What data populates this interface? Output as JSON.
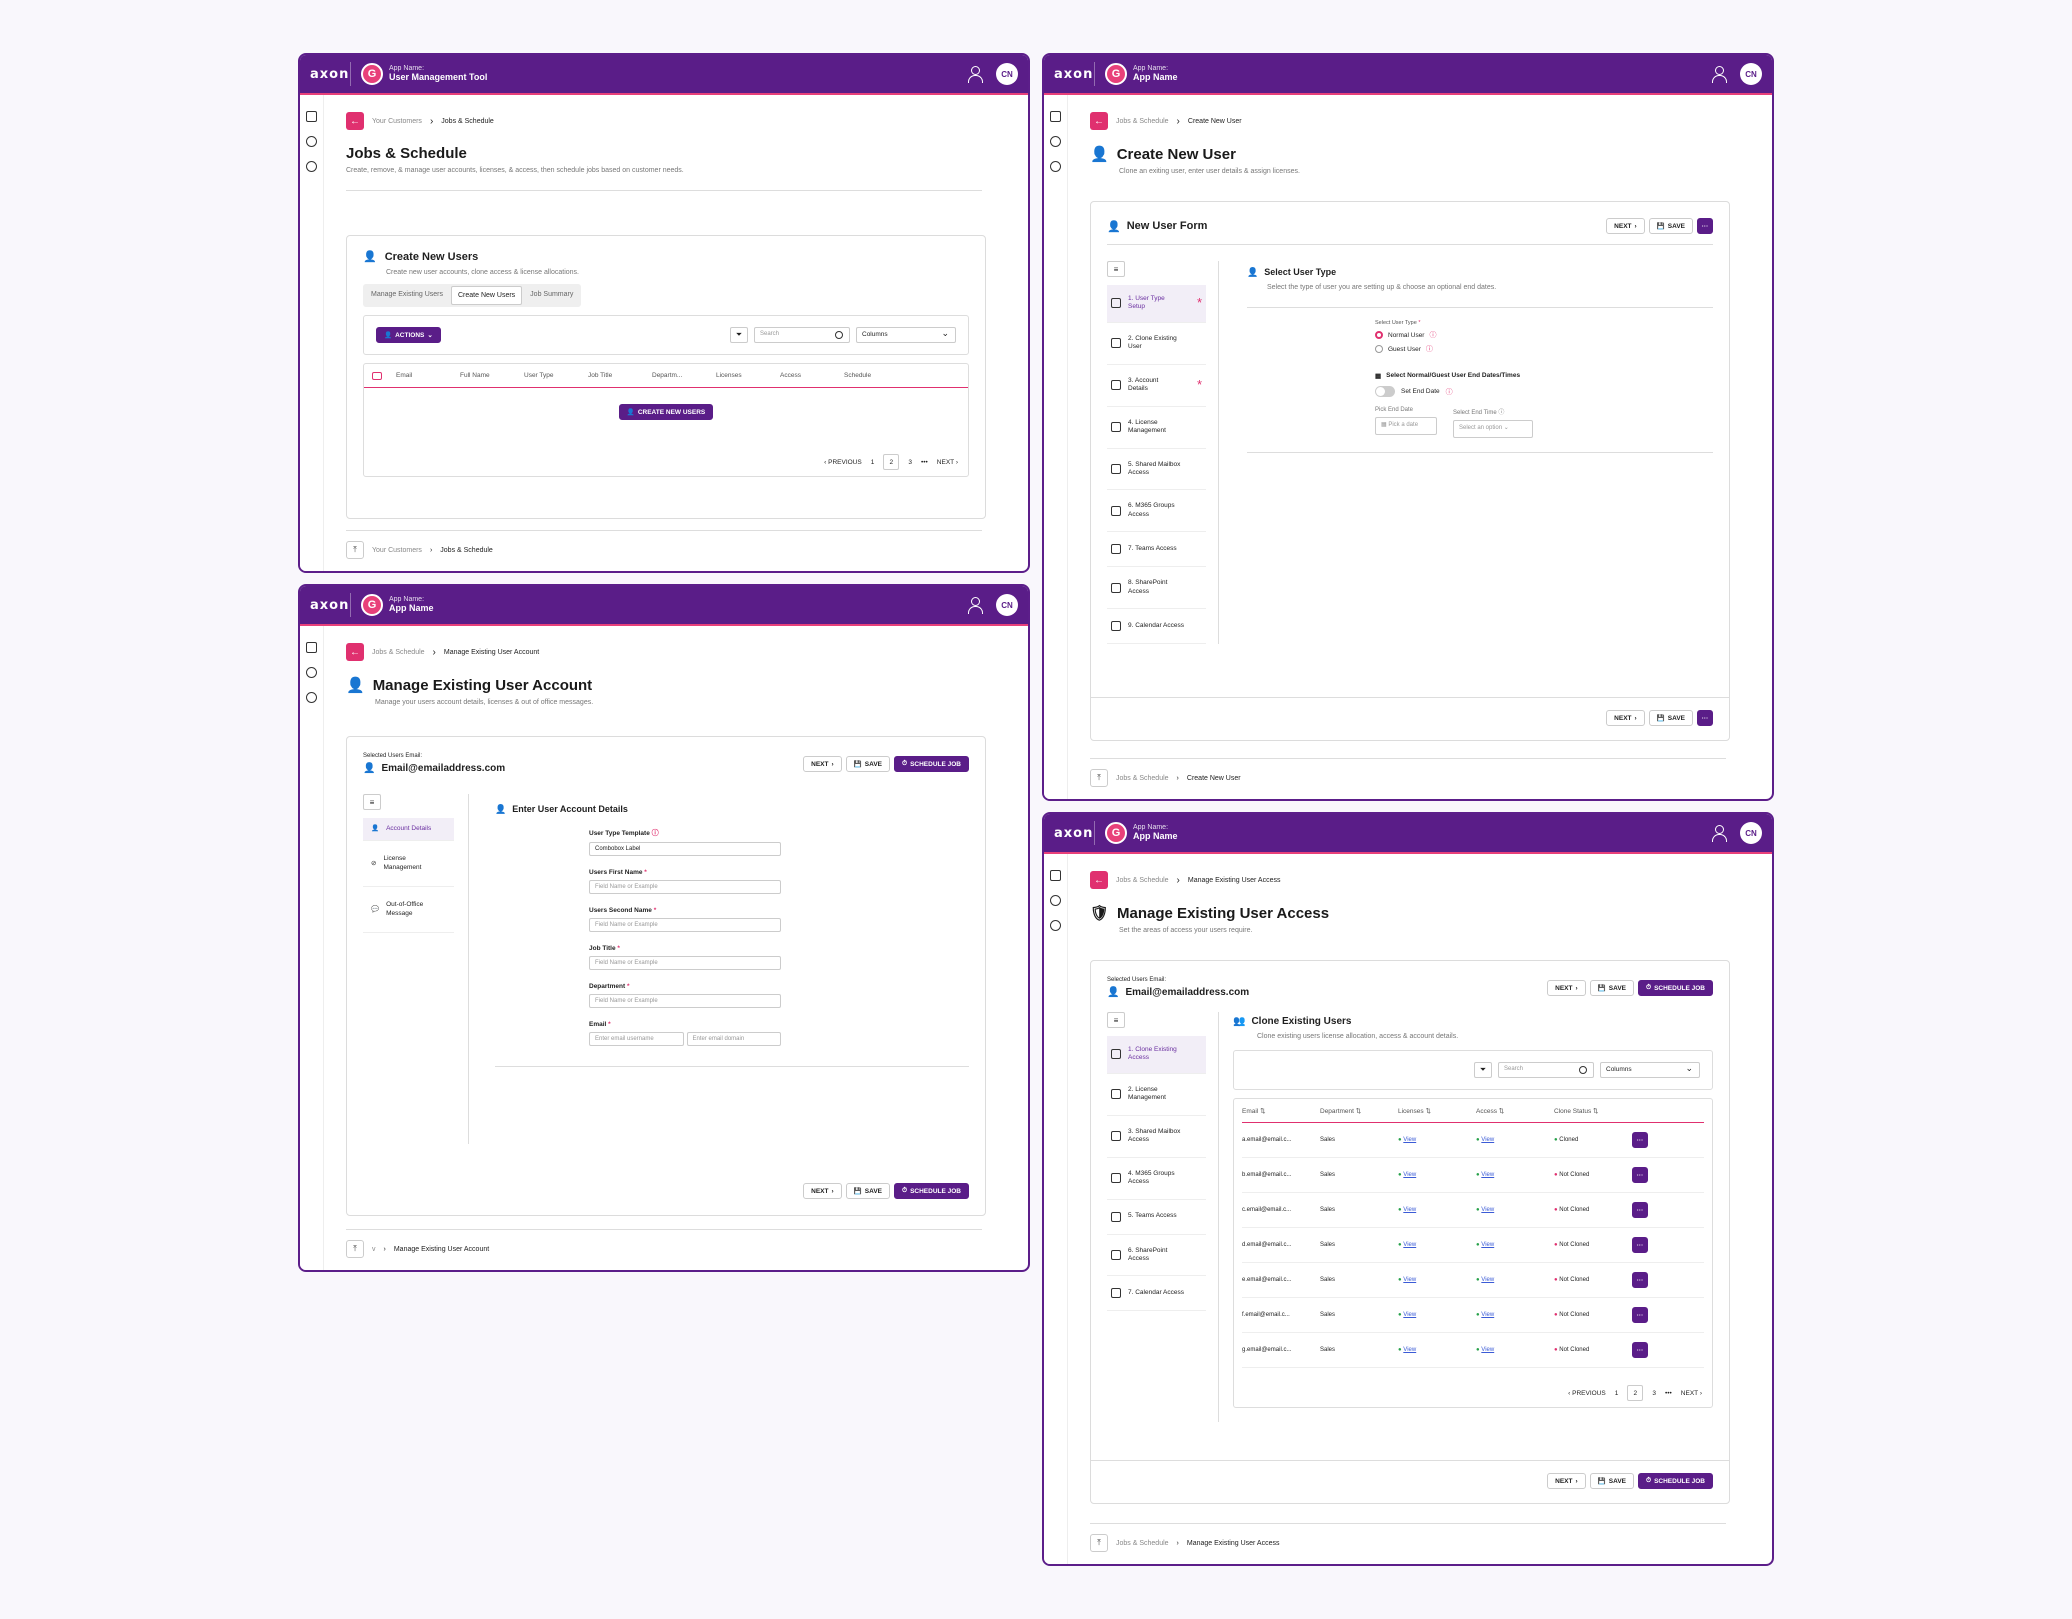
{
  "brand": {
    "logo": "axon",
    "app_logo_letter": "G",
    "app_name_caption": "App Name:",
    "avatar": "CN"
  },
  "colors": {
    "primary": "#5a1d88",
    "accent": "#e0306f",
    "success": "#27a14a"
  },
  "w1": {
    "app_name": "User Management Tool",
    "breadcrumb": [
      "Your Customers",
      "Jobs & Schedule"
    ],
    "title": "Jobs & Schedule",
    "desc": "Create, remove, & manage user accounts, licenses, & access, then schedule jobs based on customer needs.",
    "card_title": "Create New Users",
    "card_desc": "Create new user accounts, clone access & license allocations.",
    "tabs": [
      "Manage Existing Users",
      "Create New Users",
      "Job Summary"
    ],
    "actions": "ACTIONS",
    "search": "Search",
    "columns": "Columns",
    "headers": [
      "Email",
      "Full Name",
      "User Type",
      "Job Title",
      "Departm...",
      "Licenses",
      "Access",
      "Schedule"
    ],
    "empty_button": "CREATE NEW USERS",
    "pager": {
      "prev": "PREVIOUS",
      "pages": [
        "1",
        "2",
        "3"
      ],
      "ellipsis": "•••",
      "next": "NEXT"
    }
  },
  "w2": {
    "app_name": "App Name",
    "breadcrumb": [
      "Jobs & Schedule",
      "Manage Existing User Account"
    ],
    "title": "Manage Existing User Account",
    "desc": "Manage your users account details, licenses & out of office messages.",
    "selected_label": "Selected Users Email:",
    "email": "Email@emailaddress.com",
    "next": "NEXT",
    "save": "SAVE",
    "schedule": "SCHEDULE JOB",
    "menu": [
      "Account Details",
      "License Management",
      "Out-of-Office Message"
    ],
    "section_title": "Enter User Account Details",
    "fields": [
      {
        "label": "User Type Template",
        "value": "Combobox Label"
      },
      {
        "label": "Users First Name",
        "value": "Field Name or Example"
      },
      {
        "label": "Users Second Name",
        "value": "Field Name or Example"
      },
      {
        "label": "Job Title",
        "value": "Field Name or Example"
      },
      {
        "label": "Department",
        "value": "Field Name or Example"
      }
    ],
    "email_label": "Email",
    "email_user": "Enter email username",
    "email_domain": "Enter email domain",
    "footer_bc": [
      "v",
      "Manage Existing User Account"
    ]
  },
  "w3": {
    "app_name": "App Name",
    "breadcrumb": [
      "Jobs & Schedule",
      "Create New User"
    ],
    "title": "Create New User",
    "desc": "Clone an exiting user, enter user details & assign licenses.",
    "form_title": "New User Form",
    "next": "NEXT",
    "save": "SAVE",
    "steps": [
      "1. User Type Setup",
      "2. Clone Existing User",
      "3. Account Details",
      "4. License Management",
      "5. Shared Mailbox Access",
      "6. M365 Groups Access",
      "7. Teams Access",
      "8. SharePoint Access",
      "9. Calendar Access"
    ],
    "section_title": "Select User Type",
    "section_desc": "Select the type of user you are setting up & choose an optional end dates.",
    "type_label": "Select User Type",
    "type_options": [
      "Normal User",
      "Guest User"
    ],
    "dates_label": "Select Normal/Guest User End Dates/Times",
    "toggle_label": "Set End Date",
    "pick_date_label": "Pick End Date",
    "pick_date": "Pick a date",
    "end_time_label": "Select End Time",
    "end_time": "Select an option"
  },
  "w4": {
    "app_name": "App Name",
    "breadcrumb": [
      "Jobs & Schedule",
      "Manage Existing User Access"
    ],
    "title": "Manage Existing User Access",
    "desc": "Set the areas of access your users require.",
    "selected_label": "Selected Users Email:",
    "email": "Email@emailaddress.com",
    "next": "NEXT",
    "save": "SAVE",
    "schedule": "SCHEDULE JOB",
    "steps": [
      "1. Clone Existing Access",
      "2. License Management",
      "3. Shared Mailbox Access",
      "4. M365 Groups Access",
      "5. Teams Access",
      "6. SharePoint Access",
      "7. Calendar Access"
    ],
    "section_title": "Clone Existing Users",
    "section_desc": "Clone existing users license allocation, access & account details.",
    "search": "Search",
    "columns": "Columns",
    "headers": [
      "Email",
      "Department",
      "Licenses",
      "Access",
      "Clone Status"
    ],
    "rows": [
      {
        "email": "a.email@email.c...",
        "dept": "Sales",
        "lic": "View",
        "acc": "View",
        "status": "Cloned"
      },
      {
        "email": "b.email@email.c...",
        "dept": "Sales",
        "lic": "View",
        "acc": "View",
        "status": "Not Cloned"
      },
      {
        "email": "c.email@email.c...",
        "dept": "Sales",
        "lic": "View",
        "acc": "View",
        "status": "Not Cloned"
      },
      {
        "email": "d.email@email.c...",
        "dept": "Sales",
        "lic": "View",
        "acc": "View",
        "status": "Not Cloned"
      },
      {
        "email": "e.email@email.c...",
        "dept": "Sales",
        "lic": "View",
        "acc": "View",
        "status": "Not Cloned"
      },
      {
        "email": "f.email@email.c...",
        "dept": "Sales",
        "lic": "View",
        "acc": "View",
        "status": "Not Cloned"
      },
      {
        "email": "g.email@email.c...",
        "dept": "Sales",
        "lic": "View",
        "acc": "View",
        "status": "Not Cloned"
      }
    ],
    "pager": {
      "prev": "PREVIOUS",
      "pages": [
        "1",
        "2",
        "3"
      ],
      "ellipsis": "•••",
      "next": "NEXT"
    }
  }
}
